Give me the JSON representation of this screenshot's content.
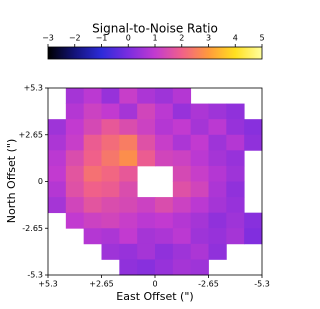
{
  "chart_data": {
    "type": "heatmap",
    "title": "Signal-to-Noise Ratio",
    "xlabel": "East Offset (\")",
    "ylabel": "North Offset (\")",
    "xlim": [
      5.3,
      -5.3
    ],
    "ylim": [
      -5.3,
      5.3
    ],
    "xticks": [
      {
        "value": 5.3,
        "label": "+5.3"
      },
      {
        "value": 2.65,
        "label": "+2.65"
      },
      0,
      -2.65,
      -5.3
    ],
    "yticks": [
      {
        "value": 5.3,
        "label": "+5.3"
      },
      {
        "value": 2.65,
        "label": "+2.65"
      },
      0,
      -2.65,
      -5.3
    ],
    "clim": [
      -3,
      5
    ],
    "cticks": [
      {
        "value": -3,
        "label": "−3"
      },
      {
        "value": -2,
        "label": "−2"
      },
      {
        "value": -1,
        "label": "−1"
      },
      0,
      1,
      2,
      3,
      4,
      5
    ],
    "colormap": [
      "#000000",
      "#13137a",
      "#2d2bd9",
      "#7a2de0",
      "#c23ad0",
      "#f0608a",
      "#ff9a3c",
      "#ffe020",
      "#ffffa0"
    ],
    "z": [
      [
        null,
        0.6,
        0.9,
        0.4,
        1.1,
        0.7,
        0.5,
        0.8,
        null,
        null,
        null,
        null
      ],
      [
        null,
        0.8,
        1.2,
        1.0,
        0.6,
        1.3,
        0.9,
        0.4,
        0.7,
        0.5,
        0.3,
        null
      ],
      [
        0.5,
        1.0,
        1.4,
        1.8,
        1.5,
        1.2,
        0.8,
        1.0,
        0.6,
        0.9,
        0.4,
        0.2
      ],
      [
        0.7,
        1.1,
        1.9,
        2.2,
        2.5,
        1.6,
        1.1,
        0.7,
        1.0,
        0.5,
        0.8,
        0.3
      ],
      [
        0.9,
        1.5,
        2.0,
        2.4,
        2.8,
        1.9,
        1.3,
        1.2,
        0.9,
        0.6,
        0.4,
        null
      ],
      [
        1.0,
        1.7,
        2.3,
        2.1,
        1.8,
        null,
        null,
        1.4,
        1.1,
        0.8,
        0.5,
        null
      ],
      [
        0.8,
        1.6,
        2.0,
        1.9,
        1.5,
        null,
        null,
        1.6,
        1.3,
        0.7,
        0.3,
        null
      ],
      [
        0.6,
        1.3,
        1.7,
        1.5,
        1.4,
        1.2,
        1.5,
        1.2,
        0.9,
        0.6,
        0.4,
        null
      ],
      [
        null,
        1.0,
        1.2,
        1.3,
        1.1,
        0.9,
        1.0,
        0.8,
        0.6,
        0.3,
        0.5,
        0.2
      ],
      [
        null,
        null,
        0.8,
        0.7,
        1.0,
        0.6,
        0.7,
        0.9,
        0.5,
        0.4,
        0.6,
        0.1
      ],
      [
        null,
        null,
        null,
        0.5,
        0.4,
        0.6,
        0.3,
        0.5,
        0.7,
        0.3,
        null,
        null
      ],
      [
        null,
        null,
        null,
        null,
        0.3,
        0.2,
        0.4,
        0.6,
        0.5,
        null,
        null,
        null
      ]
    ]
  }
}
